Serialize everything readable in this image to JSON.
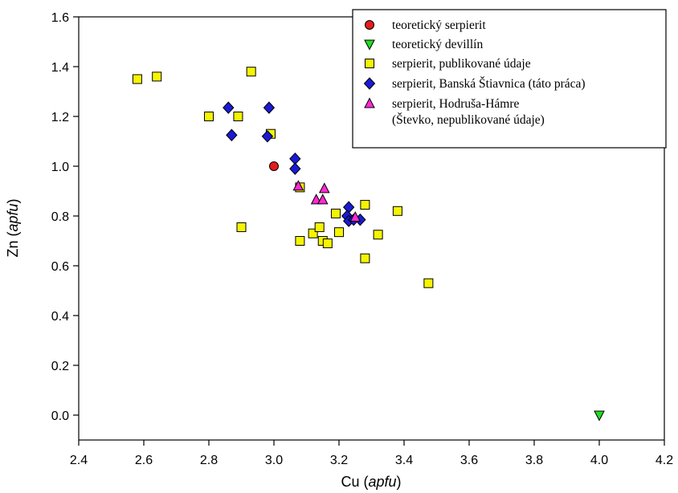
{
  "chart_data": {
    "type": "scatter",
    "xlabel": {
      "main": "Cu",
      "unit": "apfu"
    },
    "ylabel": {
      "main": "Zn",
      "unit": "apfu"
    },
    "xlim": [
      2.4,
      4.2
    ],
    "ylim": [
      -0.1,
      1.6
    ],
    "xticks": [
      "2.4",
      "2.6",
      "2.8",
      "3.0",
      "3.2",
      "3.4",
      "3.6",
      "3.8",
      "4.0",
      "4.2"
    ],
    "yticks": [
      "0.0",
      "0.2",
      "0.4",
      "0.6",
      "0.8",
      "1.0",
      "1.2",
      "1.4",
      "1.6"
    ],
    "grid": false,
    "legend_position": "top-right",
    "series": [
      {
        "name": "teoretický serpierit",
        "marker": "circle",
        "color": "#e41c1c",
        "points": [
          [
            3.0,
            1.0
          ]
        ]
      },
      {
        "name": "teoretický devillín",
        "marker": "triangle-down",
        "color": "#22dd22",
        "points": [
          [
            4.0,
            0.0
          ]
        ]
      },
      {
        "name": "serpierit, publikované údaje",
        "marker": "square",
        "color": "#f5f500",
        "points": [
          [
            2.58,
            1.35
          ],
          [
            2.64,
            1.36
          ],
          [
            2.8,
            1.2
          ],
          [
            2.89,
            1.2
          ],
          [
            2.93,
            1.38
          ],
          [
            2.99,
            1.13
          ],
          [
            2.9,
            0.755
          ],
          [
            3.08,
            0.915
          ],
          [
            3.08,
            0.7
          ],
          [
            3.12,
            0.73
          ],
          [
            3.14,
            0.755
          ],
          [
            3.15,
            0.7
          ],
          [
            3.165,
            0.69
          ],
          [
            3.19,
            0.81
          ],
          [
            3.2,
            0.735
          ],
          [
            3.28,
            0.845
          ],
          [
            3.28,
            0.63
          ],
          [
            3.32,
            0.725
          ],
          [
            3.38,
            0.82
          ],
          [
            3.475,
            0.53
          ]
        ]
      },
      {
        "name": "serpierit, Banská Štiavnica (táto práca)",
        "marker": "diamond",
        "color": "#1a1ad6",
        "points": [
          [
            2.86,
            1.235
          ],
          [
            2.87,
            1.125
          ],
          [
            2.985,
            1.235
          ],
          [
            2.98,
            1.12
          ],
          [
            3.065,
            1.03
          ],
          [
            3.065,
            0.99
          ],
          [
            3.23,
            0.835
          ],
          [
            3.225,
            0.8
          ],
          [
            3.23,
            0.78
          ],
          [
            3.245,
            0.785
          ],
          [
            3.265,
            0.785
          ]
        ]
      },
      {
        "name": "serpierit, Hodruša-Hámre (Števko, nepublikované údaje)",
        "legend_lines": [
          "serpierit, Hodruša-Hámre",
          "(Števko, nepublikované údaje)"
        ],
        "marker": "triangle-up",
        "color": "#ff2ad4",
        "points": [
          [
            3.075,
            0.92
          ],
          [
            3.13,
            0.865
          ],
          [
            3.15,
            0.865
          ],
          [
            3.155,
            0.91
          ],
          [
            3.25,
            0.795
          ]
        ]
      }
    ]
  }
}
